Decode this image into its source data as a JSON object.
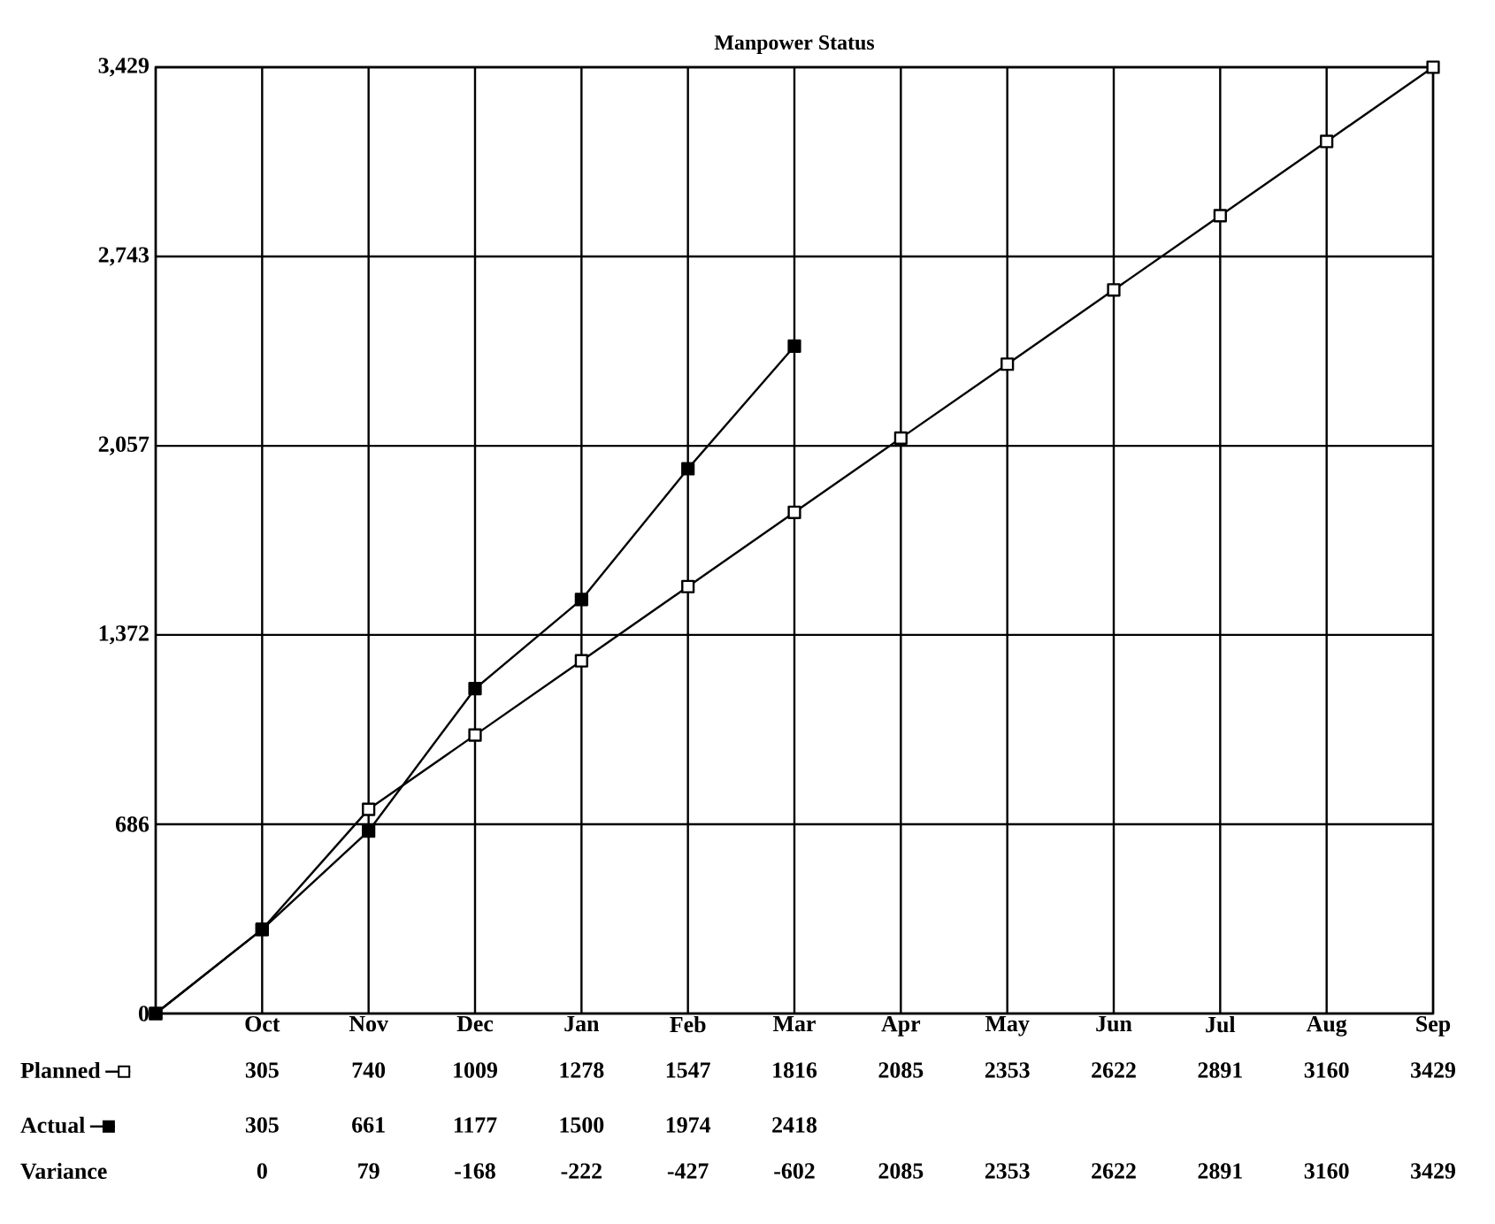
{
  "chart_data": {
    "type": "line",
    "title": "Manpower Status",
    "categories": [
      null,
      "Oct",
      "Nov",
      "Dec",
      "Jan",
      "Feb",
      "Mar",
      "Apr",
      "May",
      "Jun",
      "Jul",
      "Aug",
      "Sep"
    ],
    "ylim": [
      0,
      3429
    ],
    "yticks": [
      0,
      686,
      {
        "value": 1372,
        "label": "1,372"
      },
      {
        "value": 2057,
        "label": "2,057"
      },
      {
        "value": 2743,
        "label": "2,743"
      },
      {
        "value": 3429,
        "label": "3,429"
      }
    ],
    "grid": true,
    "marker": "square",
    "legend": "bottom left",
    "series": [
      {
        "name": "Planned",
        "color": "#000000",
        "values": [
          0,
          305,
          740,
          1009,
          1278,
          1547,
          1816,
          2085,
          2353,
          2622,
          2891,
          3160,
          3429
        ],
        "value_labels": [
          null,
          "305",
          "740",
          "1009",
          "1278",
          "1547",
          "1816",
          "2085",
          "2353",
          "2622",
          "2891",
          "3160",
          "3429"
        ]
      },
      {
        "name": "Actual",
        "color": "#000000",
        "values": [
          0,
          305,
          661,
          1177,
          1500,
          1974,
          2418,
          null,
          null,
          null,
          null,
          null,
          null
        ],
        "value_labels": [
          null,
          "305",
          "661",
          "1177",
          "1500",
          "1974",
          "2418",
          null,
          null,
          null,
          null,
          null,
          null
        ]
      }
    ],
    "annotations": [
      "Variance",
      "0",
      "79",
      "-168",
      "-222",
      "-427",
      "-602",
      "2085",
      "2353",
      "2622",
      "2891",
      "3160",
      "3429"
    ]
  }
}
